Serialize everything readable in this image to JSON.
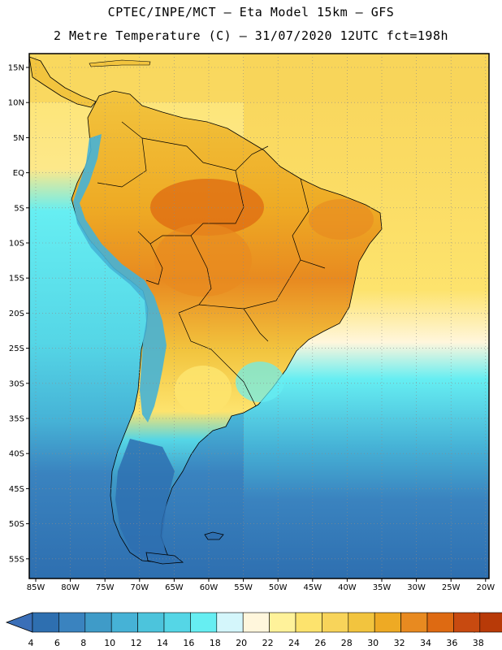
{
  "header": {
    "title_line1": "CPTEC/INPE/MCT —  Eta Model 15km — GFS",
    "title_line2": "2 Metre Temperature (C) — 31/07/2020 12UTC fct=198h"
  },
  "axes": {
    "lat_labels": [
      "15N",
      "10N",
      "5N",
      "EQ",
      "5S",
      "10S",
      "15S",
      "20S",
      "25S",
      "30S",
      "35S",
      "40S",
      "45S",
      "50S",
      "55S"
    ],
    "lon_labels": [
      "85W",
      "80W",
      "75W",
      "70W",
      "65W",
      "60W",
      "55W",
      "50W",
      "45W",
      "40W",
      "35W",
      "30W",
      "25W",
      "20W"
    ]
  },
  "colorbar": {
    "labels": [
      "4",
      "6",
      "8",
      "10",
      "12",
      "14",
      "16",
      "18",
      "20",
      "22",
      "24",
      "26",
      "28",
      "30",
      "32",
      "34",
      "36",
      "38"
    ],
    "colors": [
      "#2e6fb0",
      "#3a83bf",
      "#3f9bc8",
      "#46b2d6",
      "#4cc4dc",
      "#55d6e6",
      "#66eef2",
      "#d4f6fb",
      "#fff6dc",
      "#fff29a",
      "#fde36d",
      "#f8d45a",
      "#f2c43e",
      "#eeaa24",
      "#e88a20",
      "#de6a12",
      "#c84a10",
      "#b83a08"
    ],
    "low_color": "#3a6fb8",
    "high_color": "#b83a08"
  },
  "map_colors": {
    "ocean_cool": "#55d6e6",
    "ocean_cold": "#2e6fb0",
    "ocean_mid": "#3f9bc8",
    "ocean_warm": "#fde36d",
    "land_hot": "#e88a20",
    "land_warm": "#f2c43e",
    "land_cool": "#fde36d",
    "andes": "#46b2d6",
    "patagonia": "#2e6fb0"
  }
}
